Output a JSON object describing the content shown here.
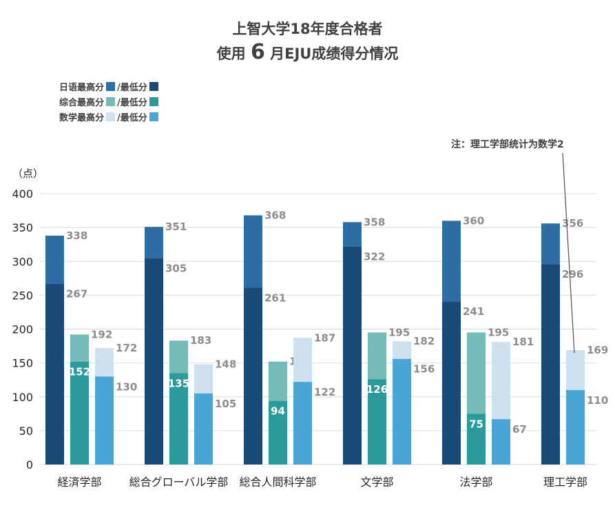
{
  "header": {
    "title_line1": "上智大学18年度合格者",
    "title_line2_prefix": "使用",
    "title_line2_big": "6",
    "title_line2_suffix": "月EJU成绩得分情况"
  },
  "legend": [
    {
      "label_high": "日语最高分",
      "sep": "/最低分",
      "color_high": "#2e6da4",
      "color_low": "#1a4a78"
    },
    {
      "label_high": "综合最高分",
      "sep": "/最低分",
      "color_high": "#77bbb8",
      "color_low": "#2b9a9a"
    },
    {
      "label_high": "数学最高分",
      "sep": "/最低分",
      "color_high": "#cde0f0",
      "color_low": "#4aa5d4"
    }
  ],
  "note": "注：理工学部统计为数学2",
  "colors": {
    "japanese_high": "#2e6da4",
    "japanese_low": "#1a4a78",
    "general_high": "#77bbb8",
    "general_low": "#2b9a9a",
    "math_high": "#cde0f0",
    "math_low": "#4aa5d4",
    "grid": "#d9d9d9",
    "label_gray": "#8c8c8c",
    "text": "#262626"
  },
  "chart_data": {
    "type": "bar",
    "yunit": "（点）",
    "ylim": [
      0,
      400
    ],
    "yticks": [
      0,
      50,
      100,
      150,
      200,
      250,
      300,
      350,
      400
    ],
    "grid": true,
    "legend_position": "top-left",
    "categories": [
      "経済学部",
      "総合グローバル学部",
      "総合人間科学部",
      "文学部",
      "法学部",
      "理工学部"
    ],
    "series": [
      {
        "name": "日语最高分",
        "subject": "japanese",
        "kind": "high",
        "values": [
          338,
          351,
          368,
          358,
          360,
          356
        ]
      },
      {
        "name": "日语最低分",
        "subject": "japanese",
        "kind": "low",
        "values": [
          267,
          305,
          261,
          322,
          241,
          296
        ]
      },
      {
        "name": "综合最高分",
        "subject": "general",
        "kind": "high",
        "values": [
          192,
          183,
          152,
          195,
          195,
          null
        ]
      },
      {
        "name": "综合最低分",
        "subject": "general",
        "kind": "low",
        "values": [
          152,
          135,
          94,
          126,
          75,
          null
        ]
      },
      {
        "name": "数学最高分",
        "subject": "math",
        "kind": "high",
        "values": [
          172,
          148,
          187,
          182,
          181,
          169
        ]
      },
      {
        "name": "数学最低分",
        "subject": "math",
        "kind": "low",
        "values": [
          130,
          105,
          122,
          156,
          67,
          110
        ]
      }
    ]
  }
}
